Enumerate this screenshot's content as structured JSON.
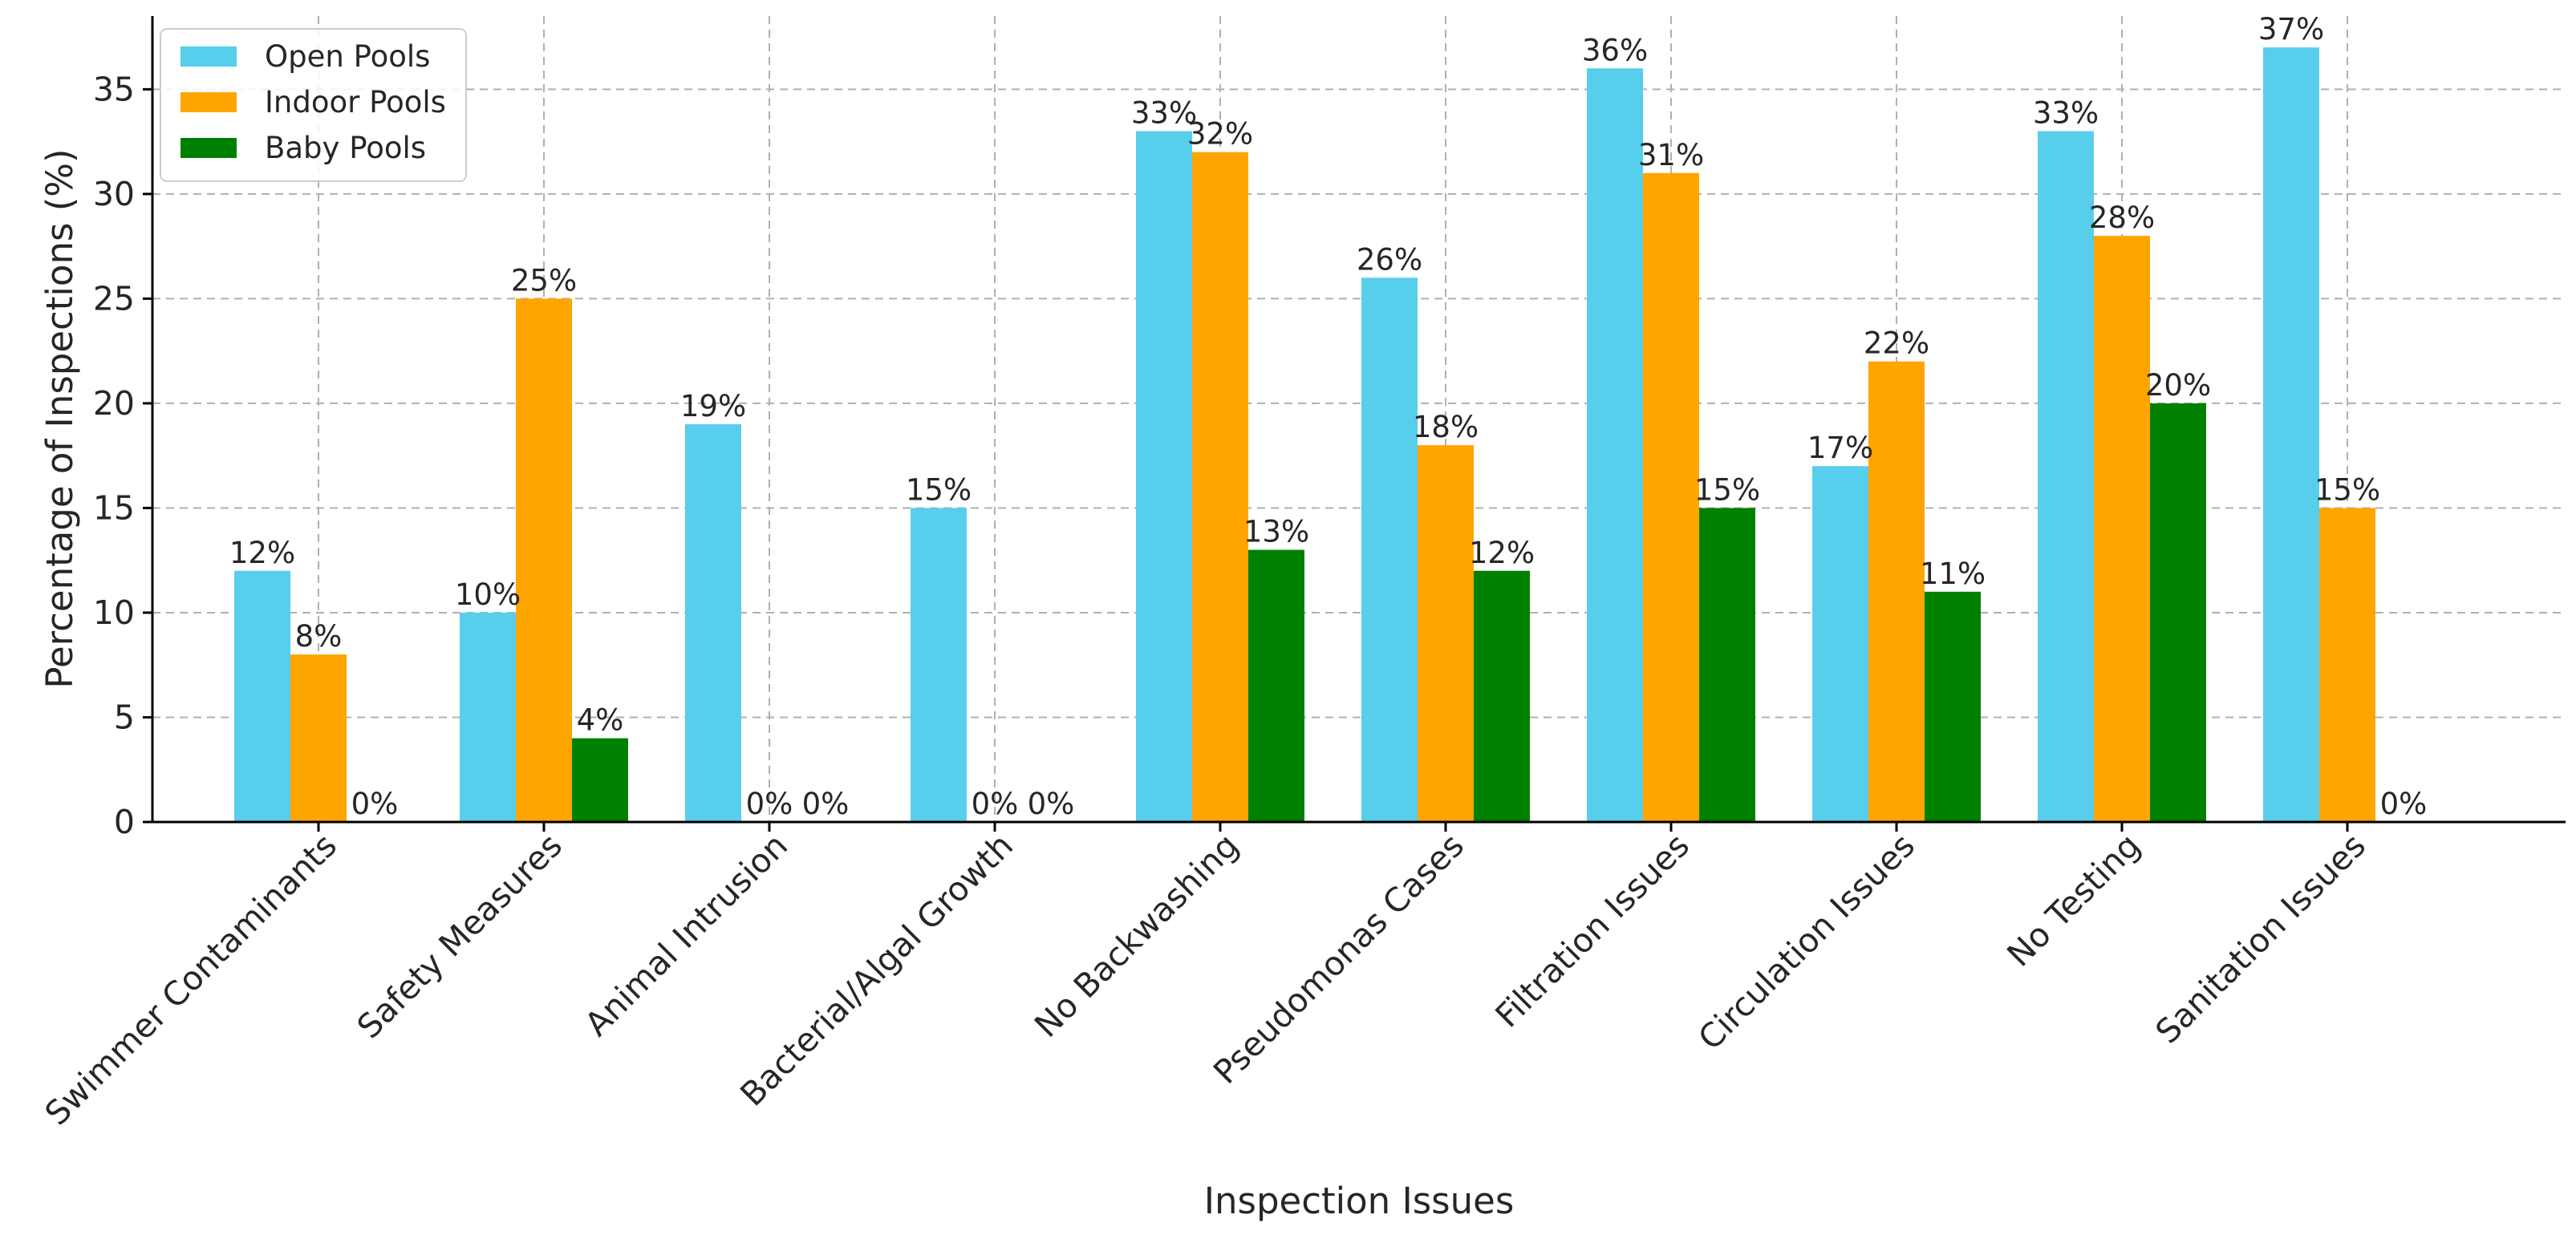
{
  "chart_data": {
    "type": "bar",
    "title": "",
    "xlabel": "Inspection Issues",
    "ylabel": "Percentage of Inspections (%)",
    "ylim": [
      0,
      38.5
    ],
    "yticks": [
      0,
      5,
      10,
      15,
      20,
      25,
      30,
      35
    ],
    "grid": true,
    "legend_position": "top-left",
    "value_suffix": "%",
    "categories": [
      "Swimmer Contaminants",
      "Safety Measures",
      "Animal Intrusion",
      "Bacterial/Algal Growth",
      "No Backwashing",
      "Pseudomonas Cases",
      "Filtration Issues",
      "Circulation Issues",
      "No Testing",
      "Sanitation Issues"
    ],
    "series": [
      {
        "name": "Open Pools",
        "color": "#57CEEB",
        "values": [
          12,
          10,
          19,
          15,
          33,
          26,
          36,
          17,
          33,
          37
        ]
      },
      {
        "name": "Indoor Pools",
        "color": "#FFA500",
        "values": [
          8,
          25,
          0,
          0,
          32,
          18,
          31,
          22,
          28,
          15
        ]
      },
      {
        "name": "Baby Pools",
        "color": "#008000",
        "values": [
          0,
          4,
          0,
          0,
          13,
          12,
          15,
          11,
          20,
          0
        ]
      }
    ]
  }
}
